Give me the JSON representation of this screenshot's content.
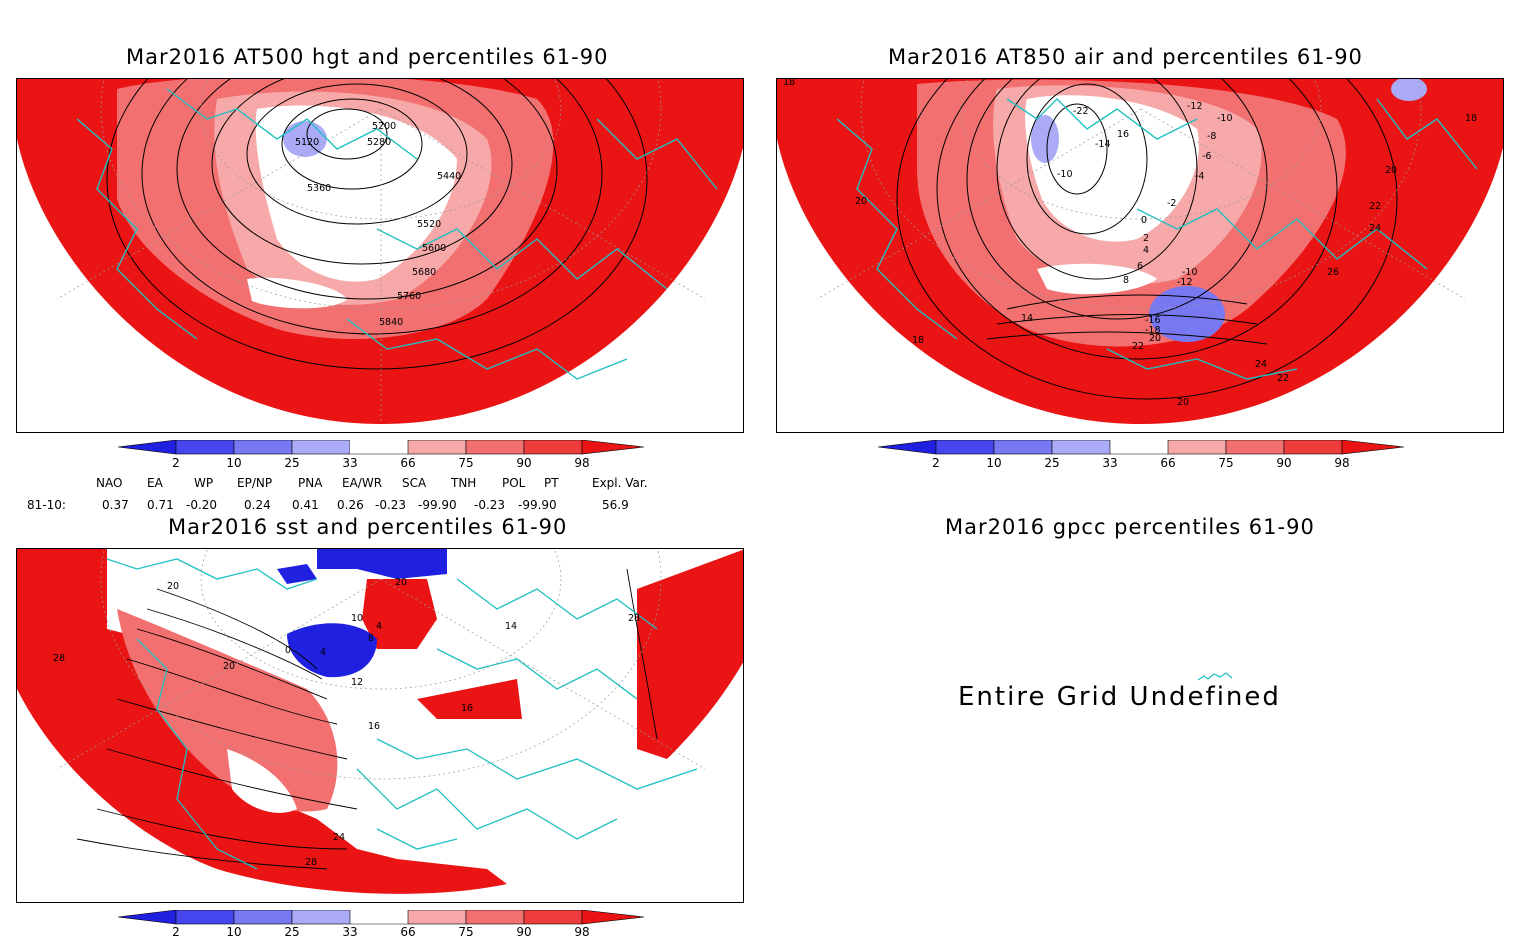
{
  "panels": {
    "hgt": {
      "title": "Mar2016 AT500 hgt and percentiles 61-90",
      "contour_labels": [
        "5120",
        "5200",
        "5280",
        "5360",
        "5440",
        "5520",
        "5600",
        "5680",
        "5760",
        "5840"
      ]
    },
    "air": {
      "title": "Mar2016 AT850 air and percentiles 61-90",
      "contour_labels": [
        "-22",
        "-14",
        "-10",
        "-12",
        "-10",
        "-8",
        "-6",
        "-4",
        "-2",
        "0",
        "2",
        "4",
        "6",
        "8",
        "-10",
        "-12",
        "14",
        "-16",
        "-18",
        "20",
        "22",
        "18",
        "20",
        "22",
        "24",
        "26",
        "20",
        "24",
        "22",
        "20",
        "18",
        "18",
        "16"
      ]
    },
    "sst": {
      "title": "Mar2016 sst and percentiles 61-90",
      "contour_labels": [
        "20",
        "28",
        "20",
        "0",
        "4",
        "8",
        "10",
        "12",
        "16",
        "24",
        "28",
        "16",
        "28",
        "20",
        "14",
        "4"
      ]
    },
    "gpcc": {
      "title": "Mar2016 gpcc percentiles 61-90",
      "message": "Entire Grid Undefined"
    }
  },
  "colorbar": {
    "ticks": [
      "2",
      "10",
      "25",
      "33",
      "66",
      "75",
      "90",
      "98"
    ],
    "colors": [
      "#2020e0",
      "#4646ee",
      "#7878f2",
      "#aaaaf6",
      "#ffffff",
      "#f7a8a8",
      "#f27070",
      "#ee3c3c",
      "#ea1414"
    ]
  },
  "indices": {
    "headers": [
      "NAO",
      "EA",
      "WP",
      "EP/NP",
      "PNA",
      "EA/WR",
      "SCA",
      "TNH",
      "POL",
      "PT",
      "Expl. Var."
    ],
    "row_label": "81-10:",
    "values": [
      "0.37",
      "0.71",
      "-0.20",
      "0.24",
      "0.41",
      "0.26",
      "-0.23",
      "-99.90",
      "-0.23",
      "-99.90",
      "56.9"
    ]
  }
}
